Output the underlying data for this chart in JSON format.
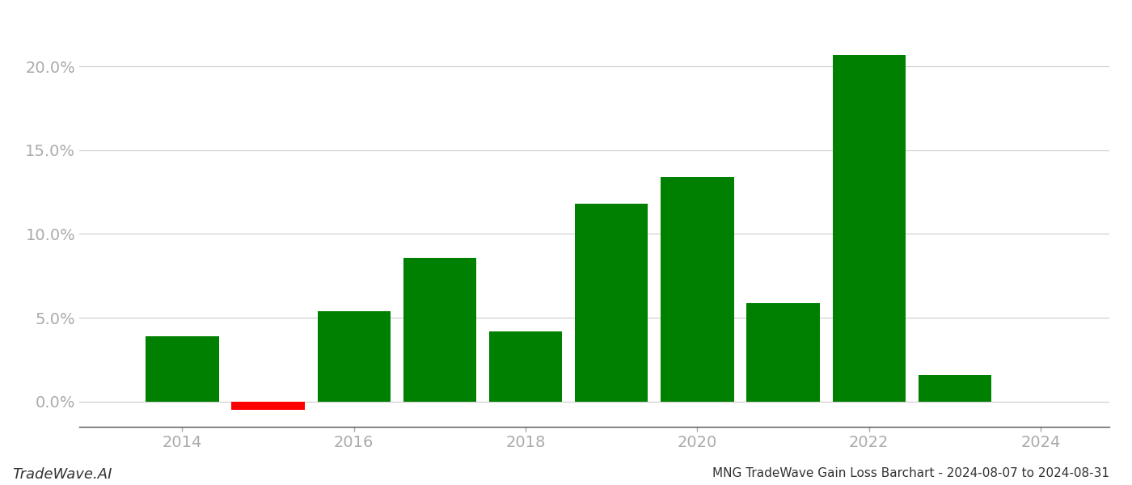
{
  "years": [
    2014,
    2015,
    2016,
    2017,
    2018,
    2019,
    2020,
    2021,
    2022,
    2023
  ],
  "values": [
    0.039,
    -0.005,
    0.054,
    0.086,
    0.042,
    0.118,
    0.134,
    0.059,
    0.207,
    0.016
  ],
  "colors": [
    "#008000",
    "#ff0000",
    "#008000",
    "#008000",
    "#008000",
    "#008000",
    "#008000",
    "#008000",
    "#008000",
    "#008000"
  ],
  "title": "MNG TradeWave Gain Loss Barchart - 2024-08-07 to 2024-08-31",
  "watermark": "TradeWave.AI",
  "background_color": "#ffffff",
  "grid_color": "#cccccc",
  "ytick_labels": [
    "0.0%",
    "5.0%",
    "10.0%",
    "15.0%",
    "20.0%"
  ],
  "ytick_values": [
    0.0,
    0.05,
    0.1,
    0.15,
    0.2
  ],
  "xtick_values": [
    2014,
    2016,
    2018,
    2020,
    2022,
    2024
  ],
  "ylim": [
    -0.015,
    0.228
  ],
  "xlim": [
    2012.8,
    2024.8
  ],
  "bar_width": 0.85,
  "title_fontsize": 11,
  "tick_fontsize": 14,
  "watermark_fontsize": 13
}
